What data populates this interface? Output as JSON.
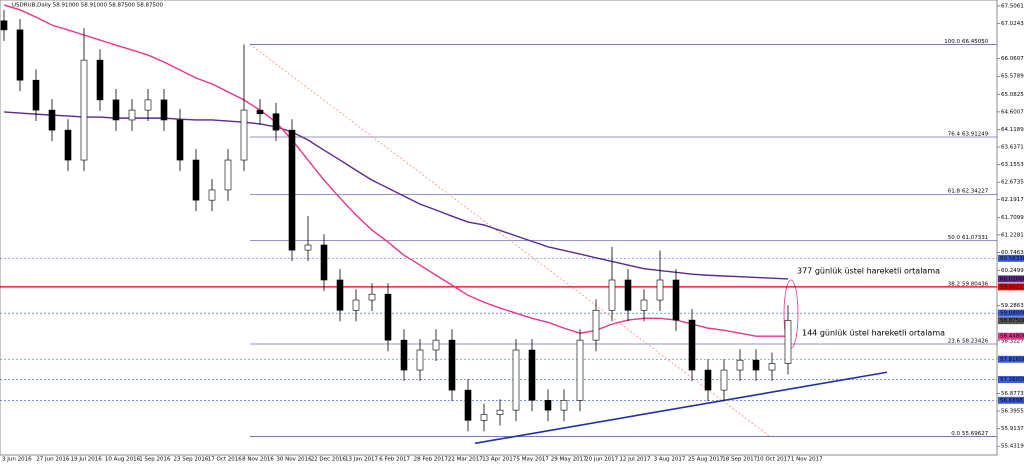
{
  "chart_data": {
    "type": "candlestick",
    "title": "USDRUB,Daily  58.91000 58.91000 58.87500 58.87500",
    "ylim": [
      55.19,
      67.67
    ],
    "yticks": [
      {
        "value": 67.5061,
        "label": "67.50610"
      },
      {
        "value": 67.0243,
        "label": "67.02430"
      },
      {
        "value": 66.0607,
        "label": "66.06070"
      },
      {
        "value": 65.5789,
        "label": "65.57890"
      },
      {
        "value": 65.0825,
        "label": "65.08250"
      },
      {
        "value": 64.6007,
        "label": "64.60070"
      },
      {
        "value": 64.1189,
        "label": "64.11890"
      },
      {
        "value": 63.6371,
        "label": "63.63710"
      },
      {
        "value": 63.1553,
        "label": "63.15530"
      },
      {
        "value": 62.6735,
        "label": "62.67350"
      },
      {
        "value": 62.1917,
        "label": "62.19170"
      },
      {
        "value": 61.7099,
        "label": "61.70990"
      },
      {
        "value": 61.2281,
        "label": "61.22810"
      },
      {
        "value": 60.7463,
        "label": "60.74630"
      },
      {
        "value": 60.2499,
        "label": "60.24990"
      },
      {
        "value": 59.2863,
        "label": "59.28630"
      },
      {
        "value": 58.3227,
        "label": "58.32270"
      },
      {
        "value": 56.8773,
        "label": "56.87730"
      },
      {
        "value": 56.3955,
        "label": "56.39550"
      },
      {
        "value": 55.9137,
        "label": "55.91370"
      },
      {
        "value": 55.4319,
        "label": "55.43190"
      }
    ],
    "x_labels": [
      "3 Jun 2016",
      "27 Jun 2016",
      "19 Jul 2016",
      "10 Aug 2016",
      "1 Sep 2016",
      "23 Sep 2016",
      "17 Oct 2016",
      "8 Nov 2016",
      "30 Nov 2016",
      "22 Dec 2016",
      "13 Jan 2017",
      "6 Feb 2017",
      "28 Feb 2017",
      "22 Mar 2017",
      "13 Apr 2017",
      "5 May 2017",
      "29 May 2017",
      "20 Jun 2017",
      "12 Jul 2017",
      "3 Aug 2017",
      "25 Aug 2017",
      "18 Sep 2017",
      "10 Oct 2017",
      "1 Nov 2017"
    ],
    "open": [
      67.1,
      66.85,
      65.47,
      64.65,
      64.1,
      63.28,
      66.02,
      64.93,
      64.38,
      64.65,
      64.93,
      64.38,
      63.28,
      62.18,
      62.46,
      63.28,
      64.65,
      64.55,
      64.1,
      60.81,
      60.95,
      59.99,
      59.16,
      59.44,
      59.6,
      58.34,
      57.52,
      58.07,
      58.34,
      56.97,
      56.14,
      56.3,
      56.42,
      58.07,
      56.69,
      56.42,
      56.69,
      58.34,
      59.16,
      59.99,
      59.16,
      59.44,
      59.99,
      58.89,
      57.52,
      56.97,
      57.52,
      57.79,
      57.52,
      57.7
    ],
    "high": [
      67.4,
      67.15,
      65.77,
      64.95,
      64.4,
      66.9,
      66.32,
      65.23,
      64.95,
      65.23,
      65.23,
      64.68,
      63.58,
      62.76,
      63.58,
      66.45,
      64.95,
      64.85,
      64.4,
      61.75,
      61.25,
      60.29,
      59.74,
      59.9,
      59.9,
      58.64,
      58.37,
      58.64,
      58.64,
      57.27,
      56.6,
      56.72,
      58.37,
      58.37,
      56.99,
      56.99,
      58.64,
      59.46,
      60.9,
      60.29,
      59.74,
      60.8,
      60.29,
      59.19,
      57.82,
      57.82,
      58.09,
      58.09,
      58.0,
      59.3
    ],
    "low": [
      66.55,
      65.17,
      64.35,
      63.8,
      62.98,
      62.98,
      64.63,
      64.08,
      64.08,
      64.35,
      64.08,
      62.98,
      61.88,
      61.88,
      62.16,
      62.98,
      64.25,
      63.8,
      60.51,
      60.51,
      59.69,
      58.86,
      58.86,
      59.14,
      58.04,
      57.22,
      57.22,
      57.77,
      56.67,
      55.84,
      55.84,
      56.0,
      56.12,
      56.39,
      56.12,
      56.12,
      56.39,
      58.04,
      58.86,
      58.86,
      58.86,
      59.14,
      58.59,
      57.22,
      56.67,
      56.67,
      57.22,
      57.22,
      57.22,
      57.4
    ],
    "close": [
      66.85,
      65.47,
      64.65,
      64.1,
      63.28,
      66.02,
      64.93,
      64.38,
      64.65,
      64.93,
      64.38,
      63.28,
      62.18,
      62.46,
      63.28,
      64.65,
      64.55,
      64.1,
      60.81,
      60.95,
      59.99,
      59.16,
      59.44,
      59.6,
      58.34,
      57.52,
      58.07,
      58.34,
      56.97,
      56.14,
      56.3,
      56.42,
      58.07,
      56.69,
      56.42,
      56.69,
      58.34,
      59.16,
      59.99,
      59.16,
      59.44,
      59.99,
      58.89,
      57.52,
      56.97,
      57.52,
      57.79,
      57.52,
      57.7,
      58.88
    ],
    "series": [
      {
        "name": "377 günlük üstel hareketli ortalama",
        "color": "#5b2a8c",
        "values": [
          64.6,
          64.57,
          64.54,
          64.51,
          64.49,
          64.46,
          64.46,
          64.43,
          64.43,
          64.43,
          64.43,
          64.4,
          64.38,
          64.38,
          64.35,
          64.32,
          64.27,
          64.19,
          64.05,
          63.83,
          63.55,
          63.28,
          63.0,
          62.73,
          62.51,
          62.29,
          62.07,
          61.91,
          61.74,
          61.58,
          61.5,
          61.35,
          61.2,
          61.05,
          60.9,
          60.8,
          60.7,
          60.6,
          60.5,
          60.4,
          60.3,
          60.25,
          60.2,
          60.15,
          60.12,
          60.1,
          60.08,
          60.06,
          60.04,
          60.02
        ]
      },
      {
        "name": "144 günlük üstel hareketli ortalama",
        "color": "#e6358c",
        "values": [
          67.53,
          67.4,
          67.2,
          66.98,
          66.85,
          66.71,
          66.57,
          66.43,
          66.3,
          66.16,
          65.97,
          65.75,
          65.53,
          65.37,
          65.15,
          64.93,
          64.65,
          64.32,
          63.83,
          63.28,
          62.73,
          62.24,
          61.77,
          61.36,
          61.03,
          60.67,
          60.4,
          60.12,
          59.85,
          59.57,
          59.38,
          59.22,
          59.08,
          58.94,
          58.83,
          58.67,
          58.53,
          58.61,
          58.78,
          58.89,
          58.94,
          58.94,
          58.89,
          58.78,
          58.67,
          58.61,
          58.53,
          58.45,
          58.45,
          58.45
        ]
      }
    ],
    "fibonacci": [
      {
        "ratio": "100.0",
        "price": {
          "value": 66.4505,
          "label": "66.45050"
        }
      },
      {
        "ratio": "76.4",
        "price": {
          "value": 63.91249,
          "label": "63.91249"
        }
      },
      {
        "ratio": "61.8",
        "price": {
          "value": 62.34227,
          "label": "62.34227"
        }
      },
      {
        "ratio": "50.0",
        "price": {
          "value": 61.07331,
          "label": "61.07331"
        }
      },
      {
        "ratio": "38.2",
        "price": {
          "value": 59.80436,
          "label": "59.80436"
        }
      },
      {
        "ratio": "23.6",
        "price": {
          "value": 58.23426,
          "label": "58.23426"
        }
      },
      {
        "ratio": "0.0",
        "price": {
          "value": 55.69627,
          "label": "55.69627"
        }
      }
    ],
    "levels": [
      {
        "price": {
          "value": 60.5833,
          "label": "60.58330"
        },
        "color": "#3a5bd9",
        "style": "dashed"
      },
      {
        "price": {
          "value": 60.02,
          "label": "60.02000"
        },
        "color": "#5b2a8c",
        "style": "none"
      },
      {
        "price": {
          "value": 59.80217,
          "label": "59.80217"
        },
        "color": "#e00000",
        "style": "solid"
      },
      {
        "price": {
          "value": 59.08,
          "label": "59.08000"
        },
        "color": "#3a5bd9",
        "style": "dashed"
      },
      {
        "price": {
          "value": 58.875,
          "label": "58.87500"
        },
        "color": "#555555",
        "style": "none"
      },
      {
        "price": {
          "value": 58.448,
          "label": "58.44800"
        },
        "color": "#e6358c",
        "style": "none"
      },
      {
        "price": {
          "value": 57.816,
          "label": "57.81600"
        },
        "color": "#3a5bd9",
        "style": "dashed"
      },
      {
        "price": {
          "value": 57.26,
          "label": "57.26000"
        },
        "color": "#3a5bd9",
        "style": "dashed"
      },
      {
        "price": {
          "value": 56.6898,
          "label": "56.68983"
        },
        "color": "#3a5bd9",
        "style": "dashed"
      }
    ],
    "trendline": {
      "color": "#1f2fa8",
      "values": [
        55.51,
        57.46
      ]
    }
  }
}
